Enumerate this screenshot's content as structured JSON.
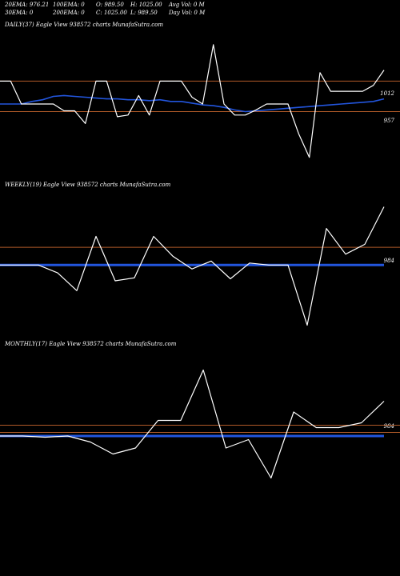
{
  "header": {
    "row1": [
      "20EMA: 976.21",
      "100EMA: 0",
      "O: 989.50",
      "H: 1025.00",
      "Avg Vol: 0  M"
    ],
    "row2": [
      "30EMA: 0",
      "200EMA: 0",
      "C: 1025.00",
      "L: 989.50",
      "Day Vol: 0  M"
    ]
  },
  "colors": {
    "background": "#000000",
    "price": "#ffffff",
    "ema": "#2255dd",
    "ref": "#b05a28"
  },
  "chart_data": [
    {
      "type": "line",
      "title": "DAILY(37) Eagle  View  938572  charts MunafaSutra.com",
      "series": [
        {
          "values": [
            1012,
            1012,
            985,
            985,
            985,
            985,
            977,
            977,
            962,
            1012,
            1012,
            970,
            972,
            995,
            972,
            1012,
            1012,
            1012,
            993,
            985,
            1055,
            985,
            972,
            972,
            978,
            985,
            985,
            985,
            950,
            922,
            1022,
            1000,
            1000,
            1000,
            1000,
            1007,
            1025
          ]
        },
        {
          "values": [
            985,
            985,
            985,
            988,
            990,
            994,
            995,
            994,
            993,
            992,
            991,
            991,
            990,
            990,
            989,
            990,
            988,
            988,
            986,
            984,
            983,
            981,
            978,
            976,
            977,
            978,
            979,
            980,
            981,
            982,
            983,
            984,
            985,
            986,
            987,
            988,
            991
          ]
        }
      ],
      "y_labels": [
        "1012",
        "957"
      ],
      "ref_lines": [
        1012,
        976
      ]
    },
    {
      "type": "line",
      "title": "WEEKLY(19) Eagle  View  938572  charts MunafaSutra.com",
      "series": [
        {
          "values": [
            966,
            966,
            966,
            958,
            940,
            995,
            950,
            953,
            995,
            975,
            962,
            970,
            952,
            968,
            966,
            966,
            905,
            1003,
            977,
            987,
            1025
          ]
        },
        {
          "values": [
            966,
            966,
            966,
            966,
            966,
            966,
            966,
            966,
            966,
            966,
            966,
            966,
            966,
            966,
            966,
            966,
            966,
            966,
            966,
            966,
            966
          ]
        }
      ],
      "y_labels": [
        "984"
      ],
      "ref_lines": [
        984
      ]
    },
    {
      "type": "line",
      "title": "MONTHLY(17) Eagle  View  938572  charts MunafaSutra.com",
      "series": [
        {
          "values": [
            975,
            975,
            974,
            975,
            970,
            960,
            965,
            988,
            988,
            1030,
            965,
            972,
            940,
            995,
            982,
            982,
            986,
            1004
          ]
        },
        {
          "values": [
            975,
            975,
            975,
            975,
            975,
            975,
            975,
            975,
            975,
            975,
            975,
            975,
            975,
            975,
            975,
            975,
            975,
            975
          ]
        }
      ],
      "y_labels": [
        "984"
      ],
      "ref_lines": [
        984,
        978
      ]
    }
  ]
}
